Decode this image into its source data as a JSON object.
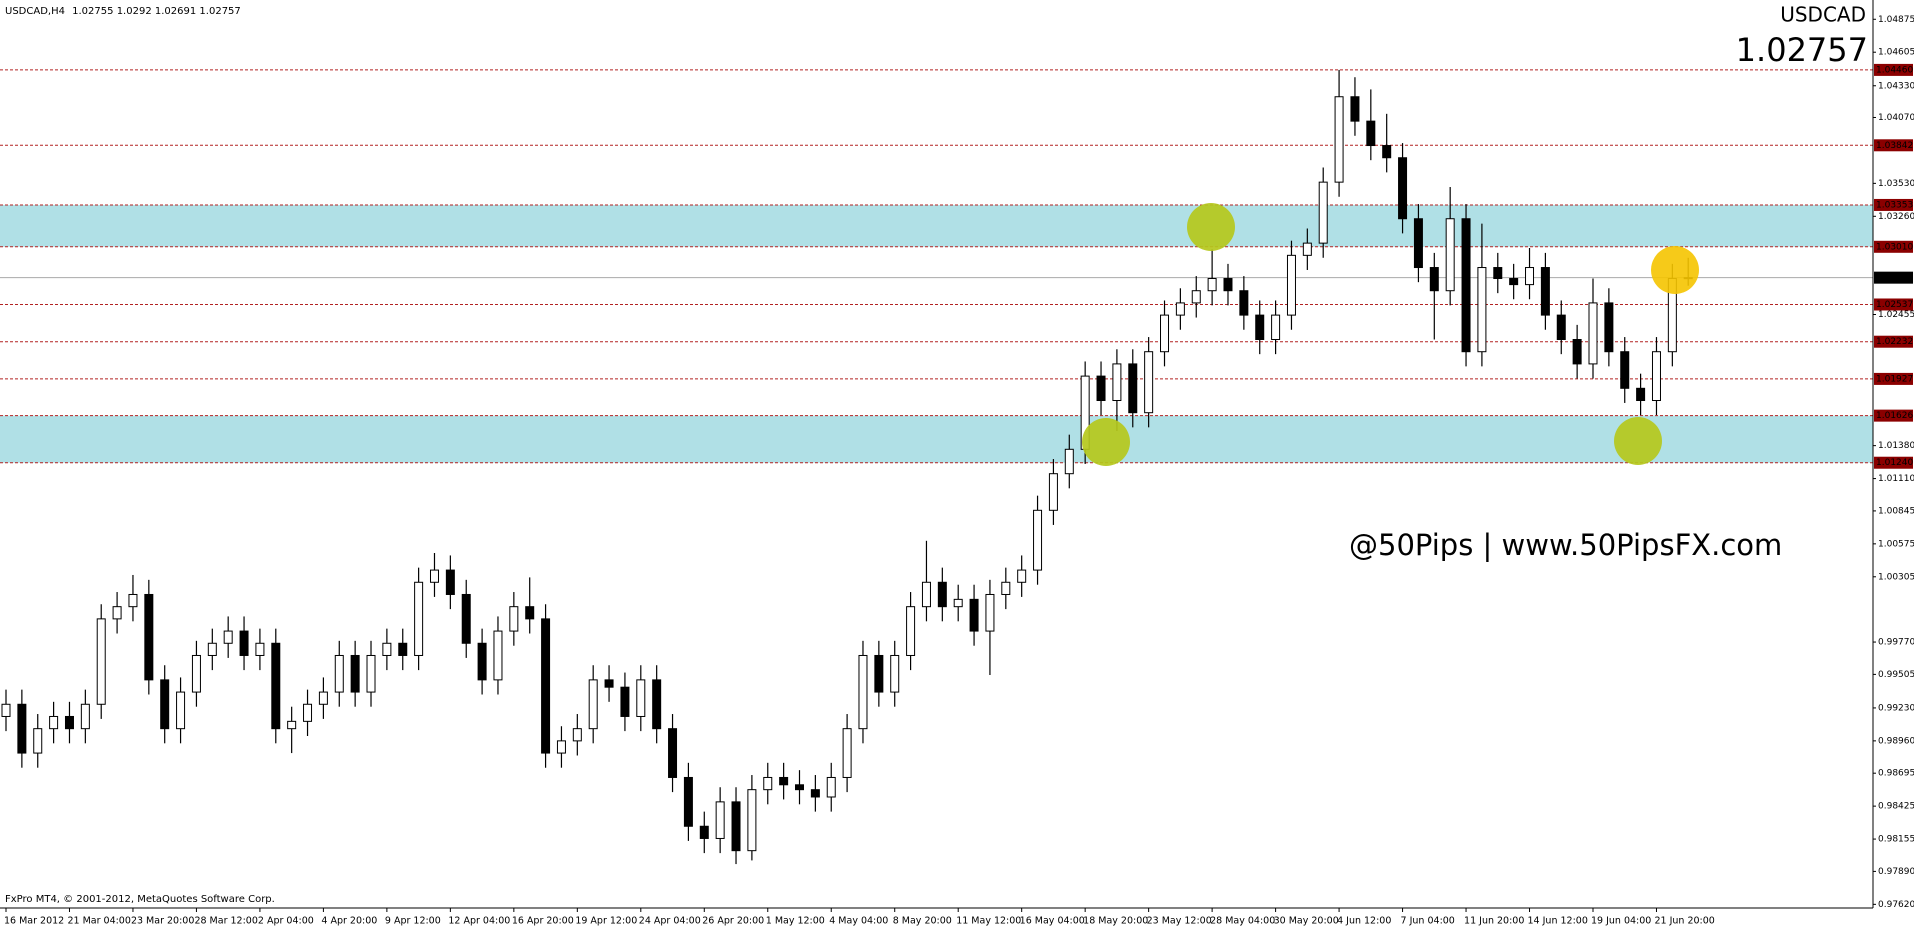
{
  "chart_data": {
    "type": "candlestick",
    "header": "USDCAD,H4",
    "symbol": "USDCAD",
    "watermark": "@50Pips | www.50PipsFX.com",
    "copyright": "FxPro MT4, © 2001-2012, MetaQuotes Software Corp.",
    "ylim": [
      0.9759,
      1.05033
    ],
    "yticks": [
      1.04875,
      1.04605,
      {
        "value": 1.0433,
        "label": "1.04330"
      },
      {
        "value": 1.0407,
        "label": "1.04070"
      },
      {
        "value": 1.0353,
        "label": "1.03530"
      },
      {
        "value": 1.0326,
        "label": "1.03260"
      },
      1.02455,
      {
        "value": 1.0138,
        "label": "1.01380"
      },
      {
        "value": 1.0111,
        "label": "1.01110"
      },
      1.00845,
      1.00575,
      1.00305,
      {
        "value": 0.9977,
        "label": "0.99770"
      },
      0.99505,
      {
        "value": 0.9923,
        "label": "0.99230"
      },
      {
        "value": 0.9896,
        "label": "0.98960"
      },
      0.98695,
      0.98425,
      0.98155,
      {
        "value": 0.9789,
        "label": "0.97890"
      },
      {
        "value": 0.9762,
        "label": "0.97620"
      }
    ],
    "levels": [
      {
        "value": 1.0446,
        "label": "1.04460"
      },
      1.03842,
      1.03353,
      {
        "value": 1.0301,
        "label": "1.03010"
      },
      1.02537,
      1.02232,
      1.01927,
      1.01626,
      {
        "value": 1.0124,
        "label": "1.01240"
      }
    ],
    "level_color": "#b22222",
    "zones": [
      [
        1.0301,
        1.03353
      ],
      [
        1.0124,
        1.01626
      ]
    ],
    "zone_color": "#b0e0e6",
    "up_color": "#ffffff",
    "down_color": "#000000",
    "price_color": "#1e8c1e",
    "watermark_color": "#a01010",
    "categories": [
      "16 Mar 2012",
      null,
      null,
      null,
      "21 Mar 04:00",
      null,
      null,
      null,
      "23 Mar 20:00",
      null,
      null,
      null,
      "28 Mar 12:00",
      null,
      null,
      null,
      "2 Apr 04:00",
      null,
      null,
      null,
      "4 Apr 20:00",
      null,
      null,
      null,
      "9 Apr 12:00",
      null,
      null,
      null,
      "12 Apr 04:00",
      null,
      null,
      null,
      "16 Apr 20:00",
      null,
      null,
      null,
      "19 Apr 12:00",
      null,
      null,
      null,
      "24 Apr 04:00",
      null,
      null,
      null,
      "26 Apr 20:00",
      null,
      null,
      null,
      "1 May 12:00",
      null,
      null,
      null,
      "4 May 04:00",
      null,
      null,
      null,
      "8 May 20:00",
      null,
      null,
      null,
      "11 May 12:00",
      null,
      null,
      null,
      "16 May 04:00",
      null,
      null,
      null,
      "18 May 20:00",
      null,
      null,
      null,
      "23 May 12:00",
      null,
      null,
      null,
      "28 May 04:00",
      null,
      null,
      null,
      "30 May 20:00",
      null,
      null,
      null,
      "4 Jun 12:00",
      null,
      null,
      null,
      "7 Jun 04:00",
      null,
      null,
      null,
      "11 Jun 20:00",
      null,
      null,
      null,
      "14 Jun 12:00",
      null,
      null,
      null,
      "19 Jun 04:00",
      null,
      null,
      null,
      "21 Jun 20:00",
      null,
      null
    ],
    "candles": [
      [
        0.9916,
        0.9938,
        0.9904,
        0.9926
      ],
      [
        0.9926,
        0.9938,
        0.9874,
        0.9886
      ],
      [
        0.9886,
        0.9918,
        0.9874,
        0.9906
      ],
      [
        0.9906,
        0.9928,
        0.9894,
        0.9916
      ],
      [
        0.9916,
        0.9928,
        0.9894,
        0.9906
      ],
      [
        0.9906,
        0.9938,
        0.9894,
        0.9926
      ],
      [
        0.9926,
        1.0008,
        0.9914,
        0.9996
      ],
      [
        0.9996,
        1.0018,
        0.9984,
        1.0006
      ],
      [
        1.0006,
        1.0032,
        0.9994,
        1.0016
      ],
      [
        1.0016,
        1.0028,
        0.9934,
        0.9946
      ],
      [
        0.9946,
        0.9958,
        0.9894,
        0.9906
      ],
      [
        0.9906,
        0.9948,
        0.9894,
        0.9936
      ],
      [
        0.9936,
        0.9978,
        0.9924,
        0.9966
      ],
      [
        0.9966,
        0.9988,
        0.9954,
        0.9976
      ],
      [
        0.9976,
        0.9998,
        0.9964,
        0.9986
      ],
      [
        0.9986,
        0.9998,
        0.9954,
        0.9966
      ],
      [
        0.9966,
        0.9988,
        0.9954,
        0.9976
      ],
      [
        0.9976,
        0.9988,
        0.9894,
        0.9906
      ],
      [
        0.9906,
        0.9924,
        0.9886,
        0.9912
      ],
      [
        0.9912,
        0.9938,
        0.99,
        0.9926
      ],
      [
        0.9926,
        0.9948,
        0.9914,
        0.9936
      ],
      [
        0.9936,
        0.9978,
        0.9924,
        0.9966
      ],
      [
        0.9966,
        0.9978,
        0.9924,
        0.9936
      ],
      [
        0.9936,
        0.9978,
        0.9924,
        0.9966
      ],
      [
        0.9966,
        0.9988,
        0.9954,
        0.9976
      ],
      [
        0.9976,
        0.9988,
        0.9954,
        0.9966
      ],
      [
        0.9966,
        1.0038,
        0.9954,
        1.0026
      ],
      [
        1.0026,
        1.005,
        1.0014,
        1.0036
      ],
      [
        1.0036,
        1.0048,
        1.0004,
        1.0016
      ],
      [
        1.0016,
        1.0028,
        0.9964,
        0.9976
      ],
      [
        0.9976,
        0.9988,
        0.9934,
        0.9946
      ],
      [
        0.9946,
        0.9998,
        0.9934,
        0.9986
      ],
      [
        0.9986,
        1.0018,
        0.9974,
        1.0006
      ],
      [
        1.0006,
        1.003,
        0.9984,
        0.9996
      ],
      [
        0.9996,
        1.0008,
        0.9874,
        0.9886
      ],
      [
        0.9886,
        0.9908,
        0.9874,
        0.9896
      ],
      [
        0.9896,
        0.9918,
        0.9884,
        0.9906
      ],
      [
        0.9906,
        0.9958,
        0.9894,
        0.9946
      ],
      [
        0.9946,
        0.9958,
        0.9928,
        0.994
      ],
      [
        0.994,
        0.9952,
        0.9904,
        0.9916
      ],
      [
        0.9916,
        0.9958,
        0.9904,
        0.9946
      ],
      [
        0.9946,
        0.9958,
        0.9894,
        0.9906
      ],
      [
        0.9906,
        0.9918,
        0.9854,
        0.9866
      ],
      [
        0.9866,
        0.9878,
        0.9814,
        0.9826
      ],
      [
        0.9826,
        0.9838,
        0.9804,
        0.9816
      ],
      [
        0.9816,
        0.9858,
        0.9804,
        0.9846
      ],
      [
        0.9846,
        0.9858,
        0.9795,
        0.9806
      ],
      [
        0.9806,
        0.9868,
        0.9798,
        0.9856
      ],
      [
        0.9856,
        0.9878,
        0.9844,
        0.9866
      ],
      [
        0.9866,
        0.9878,
        0.9848,
        0.986
      ],
      [
        0.986,
        0.9872,
        0.9844,
        0.9856
      ],
      [
        0.9856,
        0.9868,
        0.9838,
        0.985
      ],
      [
        0.985,
        0.9878,
        0.9838,
        0.9866
      ],
      [
        0.9866,
        0.9918,
        0.9854,
        0.9906
      ],
      [
        0.9906,
        0.9978,
        0.9894,
        0.9966
      ],
      [
        0.9966,
        0.9978,
        0.9924,
        0.9936
      ],
      [
        0.9936,
        0.9978,
        0.9924,
        0.9966
      ],
      [
        0.9966,
        1.0018,
        0.9954,
        1.0006
      ],
      [
        1.0006,
        1.006,
        0.9994,
        1.0026
      ],
      [
        1.0026,
        1.0038,
        0.9994,
        1.0006
      ],
      [
        1.0006,
        1.0024,
        0.9994,
        1.0012
      ],
      [
        1.0012,
        1.0024,
        0.9974,
        0.9986
      ],
      [
        0.9986,
        1.0028,
        0.995,
        1.0016
      ],
      [
        1.0016,
        1.0038,
        1.0004,
        1.0026
      ],
      [
        1.0026,
        1.0048,
        1.0014,
        1.0036
      ],
      [
        1.0036,
        1.0097,
        1.0024,
        1.0085
      ],
      [
        1.0085,
        1.0127,
        1.0073,
        1.0115
      ],
      [
        1.0115,
        1.0147,
        1.0103,
        1.0135
      ],
      [
        1.0135,
        1.0207,
        1.0123,
        1.0195
      ],
      [
        1.0195,
        1.0207,
        1.0163,
        1.0175
      ],
      [
        1.0175,
        1.0217,
        1.015,
        1.0205
      ],
      [
        1.0205,
        1.0217,
        1.0153,
        1.0165
      ],
      [
        1.0165,
        1.0227,
        1.0153,
        1.0215
      ],
      [
        1.0215,
        1.0257,
        1.0203,
        1.0245
      ],
      [
        1.0245,
        1.0267,
        1.0233,
        1.0255
      ],
      [
        1.0255,
        1.0277,
        1.0243,
        1.0265
      ],
      [
        1.0265,
        1.0299,
        1.0253,
        1.0275
      ],
      [
        1.0275,
        1.0287,
        1.0253,
        1.0265
      ],
      [
        1.0265,
        1.0277,
        1.0233,
        1.0245
      ],
      [
        1.0245,
        1.0257,
        1.0213,
        1.0225
      ],
      [
        1.0225,
        1.0257,
        1.0213,
        1.0245
      ],
      [
        1.0245,
        1.0306,
        1.0233,
        1.0294
      ],
      [
        1.0294,
        1.0316,
        1.0282,
        1.0304
      ],
      [
        1.0304,
        1.0366,
        1.0292,
        1.0354
      ],
      [
        1.0354,
        1.0446,
        1.0342,
        1.0424
      ],
      [
        1.0424,
        1.044,
        1.0392,
        1.0404
      ],
      [
        1.0404,
        1.043,
        1.0372,
        1.0384
      ],
      [
        1.0384,
        1.041,
        1.0362,
        1.0374
      ],
      [
        1.0374,
        1.0386,
        1.0312,
        1.0324
      ],
      [
        1.0324,
        1.0336,
        1.0272,
        1.0284
      ],
      [
        1.0284,
        1.0296,
        1.0225,
        1.0265
      ],
      [
        1.0265,
        1.035,
        1.0253,
        1.0324
      ],
      [
        1.0324,
        1.0336,
        1.0203,
        1.0215
      ],
      [
        1.0215,
        1.032,
        1.0203,
        1.0284
      ],
      [
        1.0284,
        1.0296,
        1.0263,
        1.0275
      ],
      [
        1.0275,
        1.0287,
        1.0258,
        1.027
      ],
      [
        1.027,
        1.03,
        1.0258,
        1.0284
      ],
      [
        1.0284,
        1.0296,
        1.0233,
        1.0245
      ],
      [
        1.0245,
        1.0257,
        1.0213,
        1.0225
      ],
      [
        1.0225,
        1.0237,
        1.0193,
        1.0205
      ],
      [
        1.0205,
        1.0275,
        1.0193,
        1.0255
      ],
      [
        1.0255,
        1.0267,
        1.0203,
        1.0215
      ],
      [
        1.0215,
        1.0227,
        1.0173,
        1.0185
      ],
      [
        1.0185,
        1.0197,
        1.0163,
        1.0175
      ],
      [
        1.0175,
        1.0227,
        1.0163,
        1.0215
      ],
      [
        1.0215,
        1.0287,
        1.0203,
        1.0275
      ],
      [
        1.02755,
        1.0292,
        1.02691,
        1.02757
      ]
    ]
  }
}
